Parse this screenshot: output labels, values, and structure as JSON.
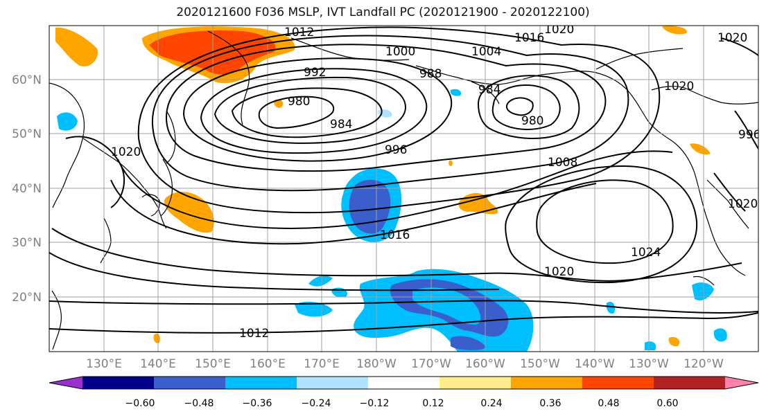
{
  "title": "2020121600 F036 MSLP, IVT Landfall PC (2020121900 - 2020122100)",
  "lat_labels": [
    "60°N",
    "50°N",
    "40°N",
    "30°N",
    "20°N"
  ],
  "lon_labels": [
    "130°E",
    "140°E",
    "150°E",
    "160°E",
    "170°E",
    "180°W",
    "170°W",
    "160°W",
    "150°W",
    "140°W",
    "130°W",
    "120°W"
  ],
  "contour_labels": [
    "1012",
    "1020",
    "1000",
    "1004",
    "1016",
    "1020",
    "992",
    "988",
    "984",
    "980",
    "984",
    "980",
    "1020",
    "996",
    "1008",
    "996",
    "1020",
    "1020",
    "1016",
    "1024",
    "1020",
    "1012"
  ],
  "colorbar": {
    "tick_labels": [
      "−0.60",
      "−0.48",
      "−0.36",
      "−0.24",
      "−0.12",
      "0.12",
      "0.24",
      "0.36",
      "0.48",
      "0.60"
    ],
    "colors": [
      "#9932cc",
      "#00008b",
      "#3a5fcd",
      "#00bfff",
      "#b0e2ff",
      "#ffffff",
      "#ffec8b",
      "#ffa500",
      "#ff4500",
      "#b22222",
      "#ff82ab"
    ]
  }
}
